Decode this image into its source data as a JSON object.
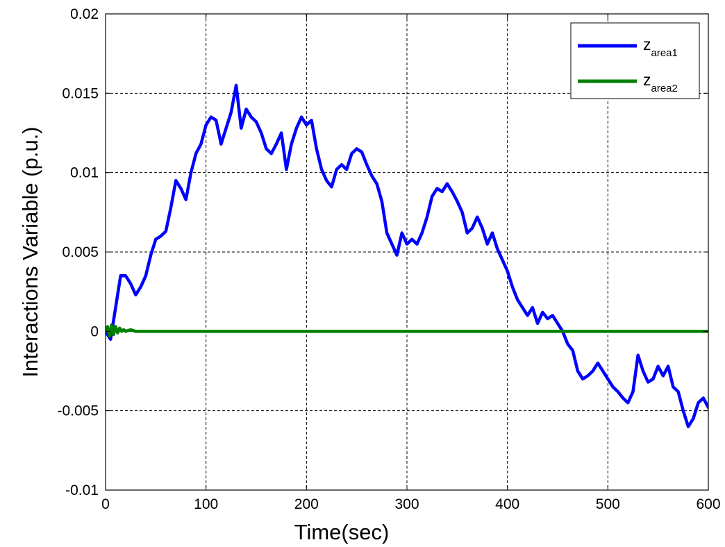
{
  "chart_data": {
    "type": "line",
    "xlabel": "Time(sec)",
    "ylabel": "Interactions Variable (p.u.)",
    "xlim": [
      0,
      600
    ],
    "ylim": [
      -0.01,
      0.02
    ],
    "xticks": [
      0,
      100,
      200,
      300,
      400,
      500,
      600
    ],
    "xtick_labels": [
      "0",
      "100",
      "200",
      "300",
      "400",
      "500",
      "600"
    ],
    "yticks": [
      -0.01,
      -0.005,
      0,
      0.005,
      0.01,
      0.015,
      0.02
    ],
    "ytick_labels": [
      "-0.01",
      "-0.005",
      "0",
      "0.005",
      "0.01",
      "0.015",
      "0.02"
    ],
    "grid": true,
    "legend_position": "top-right",
    "series": [
      {
        "name": "z",
        "name_subscript": "area1",
        "color": "#0000ff",
        "x": [
          0,
          5,
          10,
          15,
          20,
          25,
          30,
          35,
          40,
          45,
          50,
          55,
          60,
          65,
          70,
          75,
          80,
          85,
          90,
          95,
          100,
          105,
          110,
          115,
          120,
          125,
          130,
          135,
          140,
          145,
          150,
          155,
          160,
          165,
          170,
          175,
          180,
          185,
          190,
          195,
          200,
          205,
          210,
          215,
          220,
          225,
          230,
          235,
          240,
          245,
          250,
          255,
          260,
          265,
          270,
          275,
          280,
          285,
          290,
          295,
          300,
          305,
          310,
          315,
          320,
          325,
          330,
          335,
          340,
          345,
          350,
          355,
          360,
          365,
          370,
          375,
          380,
          385,
          390,
          395,
          400,
          405,
          410,
          415,
          420,
          425,
          430,
          435,
          440,
          445,
          450,
          455,
          460,
          465,
          470,
          475,
          480,
          485,
          490,
          495,
          500,
          505,
          510,
          515,
          520,
          525,
          530,
          535,
          540,
          545,
          550,
          555,
          560,
          565,
          570,
          575,
          580,
          585,
          590,
          595,
          600
        ],
        "y": [
          0.0,
          -0.0005,
          0.0015,
          0.0035,
          0.0035,
          0.003,
          0.0023,
          0.0028,
          0.0035,
          0.0048,
          0.0058,
          0.006,
          0.0063,
          0.0078,
          0.0095,
          0.009,
          0.0083,
          0.01,
          0.0112,
          0.0118,
          0.013,
          0.0135,
          0.0133,
          0.0118,
          0.0128,
          0.0138,
          0.0155,
          0.0128,
          0.014,
          0.0135,
          0.0132,
          0.0125,
          0.0115,
          0.0112,
          0.0118,
          0.0125,
          0.0102,
          0.0118,
          0.0128,
          0.0135,
          0.013,
          0.0133,
          0.0115,
          0.0102,
          0.0095,
          0.0091,
          0.0102,
          0.0105,
          0.0102,
          0.0112,
          0.0115,
          0.0113,
          0.0105,
          0.0098,
          0.0093,
          0.0082,
          0.0062,
          0.0055,
          0.0048,
          0.0062,
          0.0055,
          0.0058,
          0.0055,
          0.0062,
          0.0072,
          0.0085,
          0.009,
          0.0088,
          0.0093,
          0.0088,
          0.0082,
          0.0075,
          0.0062,
          0.0065,
          0.0072,
          0.0065,
          0.0055,
          0.0062,
          0.0052,
          0.0045,
          0.0038,
          0.0028,
          0.002,
          0.0015,
          0.001,
          0.0015,
          0.0005,
          0.0012,
          0.0008,
          0.001,
          0.0005,
          0.0,
          -0.0008,
          -0.0012,
          -0.0025,
          -0.003,
          -0.0028,
          -0.0025,
          -0.002,
          -0.0025,
          -0.003,
          -0.0035,
          -0.0038,
          -0.0042,
          -0.0045,
          -0.0038,
          -0.0015,
          -0.0025,
          -0.0032,
          -0.003,
          -0.0022,
          -0.0028,
          -0.0022,
          -0.0035,
          -0.0038,
          -0.005,
          -0.006,
          -0.0055,
          -0.0045,
          -0.0042,
          -0.0048
        ]
      },
      {
        "name": "z",
        "name_subscript": "area2",
        "color": "#007f00",
        "x": [
          0,
          2,
          4,
          6,
          8,
          10,
          12,
          14,
          16,
          18,
          20,
          25,
          30,
          40,
          50,
          60,
          80,
          100,
          150,
          200,
          250,
          300,
          350,
          400,
          450,
          500,
          550,
          600
        ],
        "y": [
          0.0,
          0.0003,
          -0.0003,
          0.0004,
          -0.0002,
          0.0003,
          -0.0001,
          0.0002,
          0.0,
          0.0001,
          0.0,
          0.0001,
          0.0,
          0.0,
          0.0,
          0.0,
          0.0,
          0.0,
          0.0,
          0.0,
          0.0,
          0.0,
          0.0,
          0.0,
          0.0,
          0.0,
          0.0,
          0.0
        ]
      }
    ]
  }
}
